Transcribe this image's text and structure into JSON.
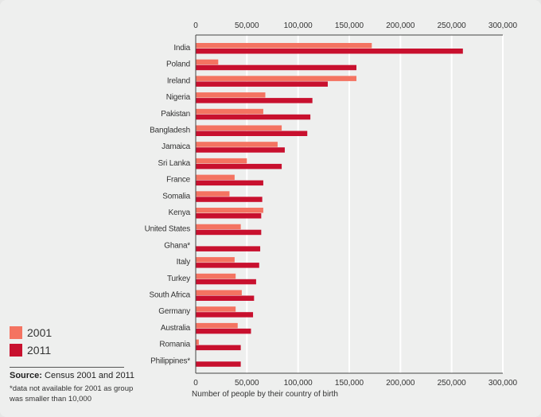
{
  "chart_data": {
    "type": "bar",
    "orientation": "horizontal",
    "title": "",
    "xlabel": "Number of people by their country of birth",
    "ylabel": "",
    "xlim": [
      0,
      300000
    ],
    "xticks": [
      0,
      50000,
      100000,
      150000,
      200000,
      250000,
      300000
    ],
    "xtick_labels": [
      "0",
      "50,000",
      "100,000",
      "150,000",
      "200,000",
      "250,000",
      "300,000"
    ],
    "grid": true,
    "legend_position": "bottom-left",
    "categories": [
      "India",
      "Poland",
      "Ireland",
      "Nigeria",
      "Pakistan",
      "Bangladesh",
      "Jamaica",
      "Sri Lanka",
      "France",
      "Somalia",
      "Kenya",
      "United States",
      "Ghana*",
      "Italy",
      "Turkey",
      "South Africa",
      "Germany",
      "Australia",
      "Romania",
      "Philippines*"
    ],
    "series": [
      {
        "name": "2001",
        "color": "#f47361",
        "values": [
          172000,
          22000,
          157000,
          68000,
          66000,
          84000,
          80000,
          50000,
          38000,
          33000,
          66000,
          44000,
          null,
          38000,
          39000,
          45000,
          39000,
          41000,
          3000,
          null
        ]
      },
      {
        "name": "2011",
        "color": "#c8102e",
        "values": [
          261000,
          157000,
          129000,
          114000,
          112000,
          109000,
          87000,
          84000,
          66000,
          65000,
          64000,
          64000,
          63000,
          62000,
          59000,
          57000,
          56000,
          54000,
          44000,
          44000
        ]
      }
    ]
  },
  "legend": [
    {
      "label": "2001",
      "color": "#f47361"
    },
    {
      "label": "2011",
      "color": "#c8102e"
    }
  ],
  "source": {
    "prefix": "Source:",
    "text": "Census 2001 and 2011"
  },
  "note": "*data not available for 2001 as group was smaller than 10,000"
}
